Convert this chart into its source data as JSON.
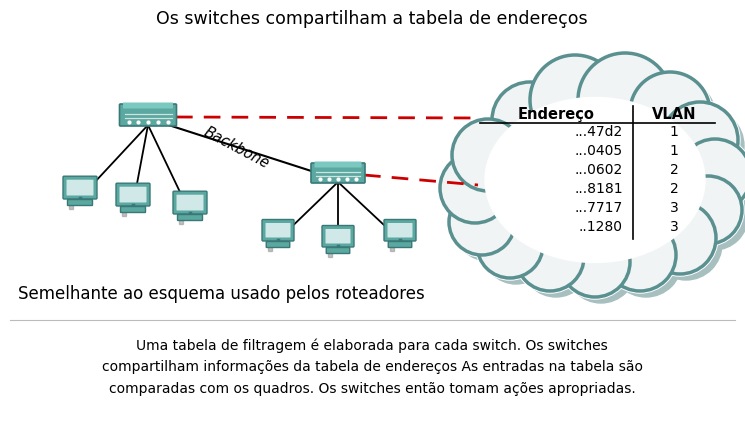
{
  "title_top": "Os switches compartilham a tabela de endereços",
  "title_mid": "Semelhante ao esquema usado pelos roteadores",
  "bottom_text_line1": "Uma tabela de filtragem é elaborada para cada switch. Os switches",
  "bottom_text_line2": "compartilham informações da tabela de endereços As entradas na tabela são",
  "bottom_text_line3": "comparadas com os quadros. Os switches então tomam ações apropriadas.",
  "backbone_label": "Backbone",
  "table_header_col1": "Endereço",
  "table_header_col2": "VLAN",
  "table_rows": [
    [
      "...47d2",
      "1"
    ],
    [
      "...0405",
      "1"
    ],
    [
      "...0602",
      "2"
    ],
    [
      "...8181",
      "2"
    ],
    [
      "...7717",
      "3"
    ],
    [
      "..1280",
      "3"
    ]
  ],
  "bg_color": "#ffffff",
  "text_color": "#000000",
  "cloud_fill": "#f0f4f4",
  "cloud_shadow": "#a8bfc0",
  "cloud_edge": "#5a9090",
  "dashed_line_color": "#cc0000",
  "switch_color": "#5ba8a0",
  "switch_edge": "#3a7878",
  "computer_color": "#5ba8a0",
  "computer_screen": "#d0e8e8"
}
